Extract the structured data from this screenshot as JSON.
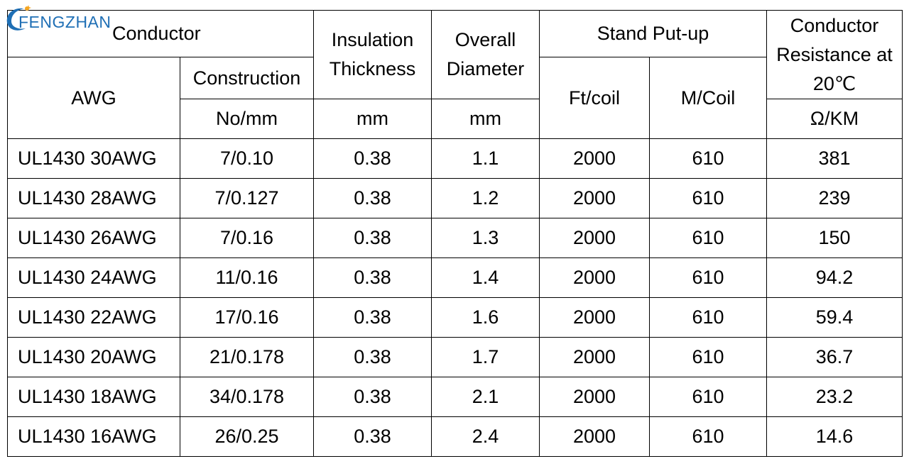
{
  "logo": {
    "text": "FENGZHAN",
    "color": "#1f6fb5",
    "accent": "#f5a623"
  },
  "headers": {
    "conductor": "Conductor",
    "awg": "AWG",
    "construction": "Construction",
    "construction_unit": "No/mm",
    "insulation_line1": "Insulation",
    "insulation_line2": "Thickness",
    "insulation_unit": "mm",
    "overall_line1": "Overall",
    "overall_line2": "Diameter",
    "overall_unit": "mm",
    "standput": "Stand Put-up",
    "ftcoil": "Ft/coil",
    "mcoil": "M/Coil",
    "resistance_line1": "Conductor",
    "resistance_line2": "Resistance at",
    "resistance_line3": "20℃",
    "resistance_unit": "Ω/KM"
  },
  "rows": [
    {
      "awg": "UL1430 30AWG",
      "construction": "7/0.10",
      "insulation": "0.38",
      "diameter": "1.1",
      "ft": "2000",
      "m": "610",
      "resistance": "381"
    },
    {
      "awg": "UL1430 28AWG",
      "construction": "7/0.127",
      "insulation": "0.38",
      "diameter": "1.2",
      "ft": "2000",
      "m": "610",
      "resistance": "239"
    },
    {
      "awg": "UL1430 26AWG",
      "construction": "7/0.16",
      "insulation": "0.38",
      "diameter": "1.3",
      "ft": "2000",
      "m": "610",
      "resistance": "150"
    },
    {
      "awg": "UL1430 24AWG",
      "construction": "11/0.16",
      "insulation": "0.38",
      "diameter": "1.4",
      "ft": "2000",
      "m": "610",
      "resistance": "94.2"
    },
    {
      "awg": "UL1430 22AWG",
      "construction": "17/0.16",
      "insulation": "0.38",
      "diameter": "1.6",
      "ft": "2000",
      "m": "610",
      "resistance": "59.4"
    },
    {
      "awg": "UL1430 20AWG",
      "construction": "21/0.178",
      "insulation": "0.38",
      "diameter": "1.7",
      "ft": "2000",
      "m": "610",
      "resistance": "36.7"
    },
    {
      "awg": "UL1430 18AWG",
      "construction": "34/0.178",
      "insulation": "0.38",
      "diameter": "2.1",
      "ft": "2000",
      "m": "610",
      "resistance": "23.2"
    },
    {
      "awg": "UL1430 16AWG",
      "construction": "26/0.25",
      "insulation": "0.38",
      "diameter": "2.4",
      "ft": "2000",
      "m": "610",
      "resistance": "14.6"
    }
  ]
}
